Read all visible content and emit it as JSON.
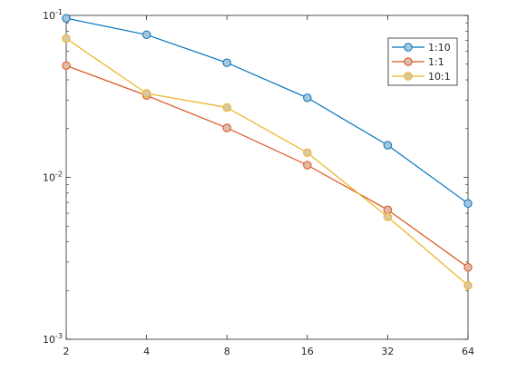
{
  "chart_data": {
    "type": "line",
    "title": "",
    "xlabel": "",
    "ylabel": "",
    "x_scale": "log2",
    "y_scale": "log10",
    "x": [
      2,
      4,
      8,
      16,
      32,
      64
    ],
    "xlim": [
      2,
      64
    ],
    "ylim": [
      0.001,
      0.1
    ],
    "x_ticks": [
      "2",
      "4",
      "8",
      "16",
      "32",
      "64"
    ],
    "y_ticks": [
      {
        "value": 0.1,
        "mantissa": "10",
        "exponent": "-1"
      },
      {
        "value": 0.01,
        "mantissa": "10",
        "exponent": "-2"
      },
      {
        "value": 0.001,
        "mantissa": "10",
        "exponent": "-3"
      }
    ],
    "grid": false,
    "legend_position": "top-right",
    "series": [
      {
        "name": "1:10",
        "color": "#0072BD",
        "marker_fill": "#A8C7DD",
        "values": [
          0.096,
          0.076,
          0.051,
          0.031,
          0.0158,
          0.0069
        ]
      },
      {
        "name": "1:1",
        "color": "#D95319",
        "marker_fill": "#E3B9A8",
        "values": [
          0.049,
          0.032,
          0.0202,
          0.0119,
          0.0063,
          0.00278
        ]
      },
      {
        "name": "10:1",
        "color": "#EDB120",
        "marker_fill": "#D9C9A0",
        "values": [
          0.072,
          0.033,
          0.027,
          0.0142,
          0.0057,
          0.00215
        ]
      }
    ]
  }
}
